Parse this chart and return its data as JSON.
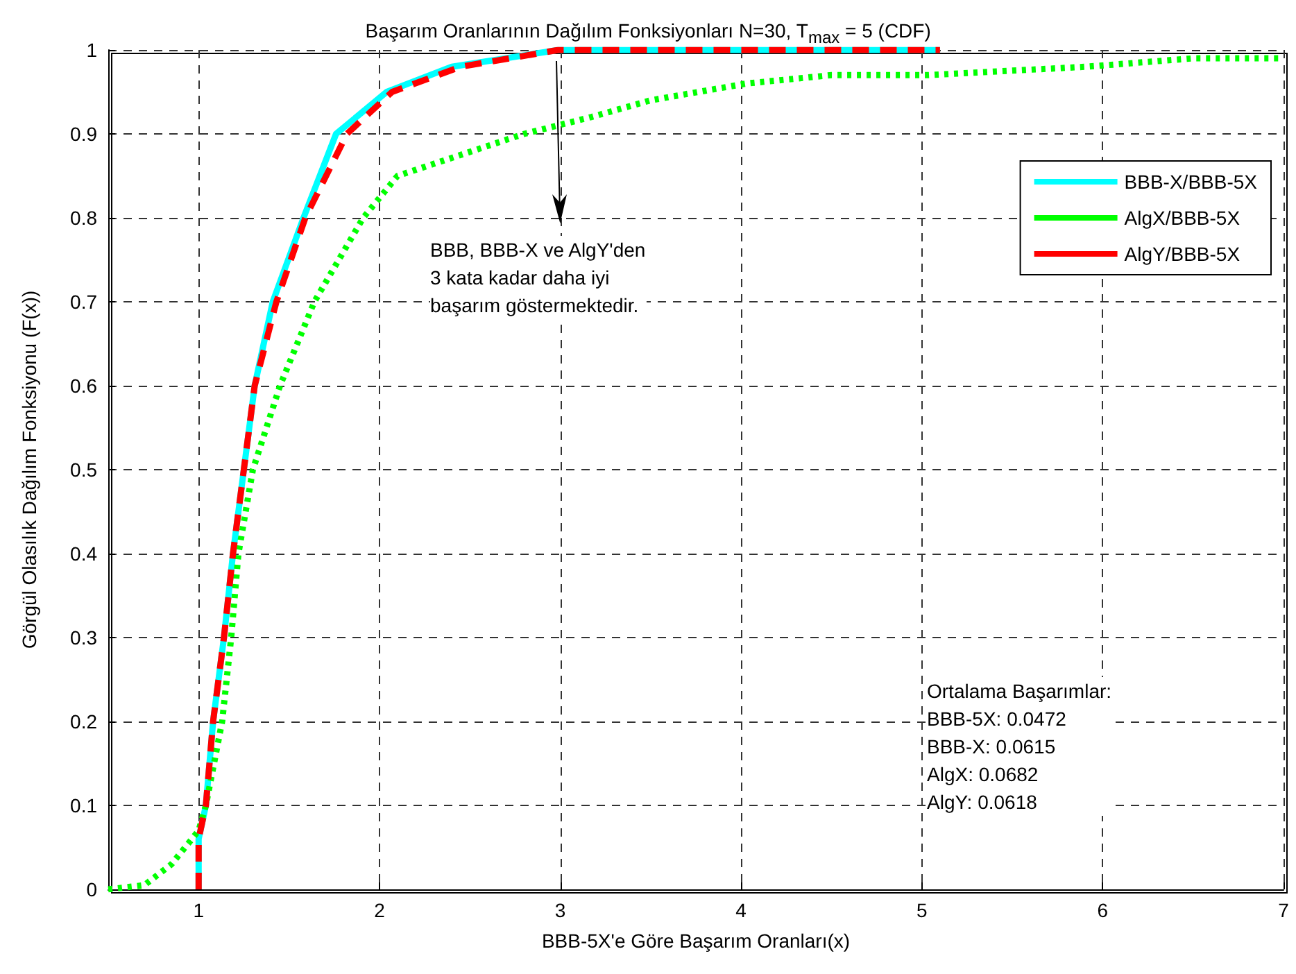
{
  "chart_data": {
    "type": "line",
    "title": "Başarım Oranlarının Dağılım Fonksiyonları N=30, T$_{max}$ = 5 (CDF)",
    "xlabel": "BBB-5X'e Göre Başarım Oranları(x)",
    "ylabel": "Görgül Olasılık Dağılım Fonksiyonu (F(x))",
    "xlim": [
      0.5,
      7
    ],
    "xticks": [
      1,
      2,
      3,
      4,
      5,
      6,
      7
    ],
    "ylim": [
      0,
      1
    ],
    "yticks": [
      0,
      0.1,
      0.2,
      0.3,
      0.4,
      0.5,
      0.6,
      0.7,
      0.8,
      0.9,
      1
    ],
    "grid": true,
    "legend": "top right",
    "marker": "none",
    "series": [
      {
        "name": "BBB-X/BBB-5X",
        "color": "#00ffff",
        "line_style": "solid",
        "x": [
          1,
          1,
          1.04,
          1.08,
          1.14,
          1.19,
          1.25,
          1.31,
          1.41,
          1.58,
          1.76,
          2.04,
          2.4,
          2.99,
          5.1
        ],
        "values": [
          0,
          0.06,
          0.1,
          0.2,
          0.3,
          0.4,
          0.5,
          0.6,
          0.7,
          0.8,
          0.9,
          0.95,
          0.98,
          1,
          1
        ]
      },
      {
        "name": "AlgX/BBB-5X",
        "color": "#00ff00",
        "line_style": "dotted",
        "x": [
          0.5,
          0.7,
          0.85,
          1,
          1.04,
          1.13,
          1.18,
          1.22,
          1.3,
          1.45,
          1.64,
          1.91,
          2.1,
          2.8,
          3.17,
          3.5,
          4.03,
          4.5,
          5.03,
          5.91,
          6.5,
          7
        ],
        "values": [
          0,
          0.005,
          0.03,
          0.07,
          0.1,
          0.2,
          0.3,
          0.4,
          0.5,
          0.6,
          0.7,
          0.8,
          0.85,
          0.9,
          0.92,
          0.94,
          0.96,
          0.97,
          0.97,
          0.98,
          0.99,
          0.99
        ]
      },
      {
        "name": "AlgY/BBB-5X",
        "color": "#ff0000",
        "line_style": "dashed",
        "x": [
          1,
          1,
          1.04,
          1.08,
          1.14,
          1.19,
          1.25,
          1.31,
          1.43,
          1.59,
          1.82,
          2.07,
          2.45,
          2.99,
          5.1
        ],
        "values": [
          0,
          0.06,
          0.1,
          0.2,
          0.3,
          0.4,
          0.5,
          0.6,
          0.7,
          0.8,
          0.9,
          0.95,
          0.98,
          1,
          1
        ]
      }
    ],
    "annotations": [
      "BBB, BBB-X ve AlgY'den\n3 kata kadar daha iyi\nbaşarım göstermektedir.",
      "Ortalama Başarımlar:\nBBB-5X: 0.0472\nBBB-X: 0.0615\nAlgX: 0.0682\nAlgY: 0.0618"
    ]
  }
}
